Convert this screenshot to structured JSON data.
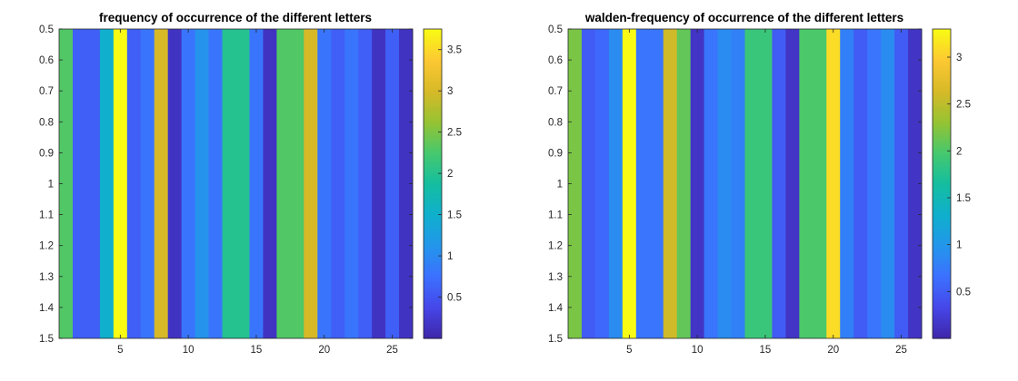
{
  "chart_data": [
    {
      "type": "heatmap",
      "title": "frequency of occurrence of the different letters",
      "xlabel": "",
      "ylabel": "",
      "x": [
        1,
        2,
        3,
        4,
        5,
        6,
        7,
        8,
        9,
        10,
        11,
        12,
        13,
        14,
        15,
        16,
        17,
        18,
        19,
        20,
        21,
        22,
        23,
        24,
        25,
        26
      ],
      "values": [
        2.3,
        0.6,
        0.6,
        1.5,
        3.75,
        0.6,
        0.8,
        3.0,
        0.15,
        0.8,
        1.1,
        0.8,
        2.0,
        2.0,
        0.8,
        0.15,
        2.3,
        2.3,
        3.0,
        0.8,
        0.6,
        0.8,
        0.6,
        0.15,
        0.6,
        0.15
      ],
      "xlim": [
        0.5,
        26.5
      ],
      "ylim": [
        0.5,
        1.5
      ],
      "xticks": [
        "5",
        "10",
        "15",
        "20",
        "25"
      ],
      "yticks": [
        "0.5",
        "0.6",
        "0.7",
        "0.8",
        "0.9",
        "1",
        "1.1",
        "1.2",
        "1.3",
        "1.4",
        "1.5"
      ],
      "colorbar": {
        "min": 0.0,
        "max": 3.75,
        "ticks": [
          "0.5",
          "1",
          "1.5",
          "2",
          "2.5",
          "3",
          "3.5"
        ]
      },
      "colormap": "parula",
      "grid": false
    },
    {
      "type": "heatmap",
      "title": "walden-frequency of occurrence of the different letters",
      "xlabel": "",
      "ylabel": "",
      "x": [
        1,
        2,
        3,
        4,
        5,
        6,
        7,
        8,
        9,
        10,
        11,
        12,
        13,
        14,
        15,
        16,
        17,
        18,
        19,
        20,
        21,
        22,
        23,
        24,
        25,
        26
      ],
      "values": [
        2.2,
        0.5,
        0.6,
        0.9,
        3.3,
        0.7,
        0.7,
        2.6,
        2.1,
        0.15,
        0.7,
        0.9,
        0.8,
        1.9,
        1.9,
        0.5,
        0.15,
        2.0,
        2.0,
        3.1,
        0.8,
        0.5,
        0.7,
        0.9,
        0.5,
        0.15
      ],
      "xlim": [
        0.5,
        26.5
      ],
      "ylim": [
        0.5,
        1.5
      ],
      "xticks": [
        "5",
        "10",
        "15",
        "20",
        "25"
      ],
      "yticks": [
        "0.5",
        "0.6",
        "0.7",
        "0.8",
        "0.9",
        "1",
        "1.1",
        "1.2",
        "1.3",
        "1.4",
        "1.5"
      ],
      "colorbar": {
        "min": 0.0,
        "max": 3.3,
        "ticks": [
          "0.5",
          "1",
          "1.5",
          "2",
          "2.5",
          "3"
        ]
      },
      "colormap": "parula",
      "grid": false
    }
  ]
}
